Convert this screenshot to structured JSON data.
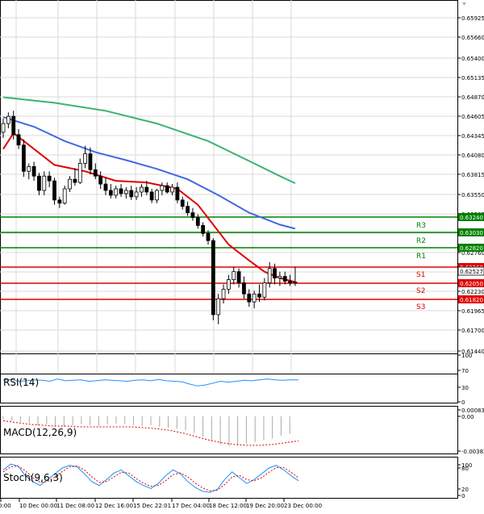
{
  "chart_data": {
    "type": "candlestick",
    "y_ticks": [
      "0.65925",
      "0.65660",
      "0.65400",
      "0.65135",
      "0.64870",
      "0.64605",
      "0.64345",
      "0.64080",
      "0.63815",
      "0.63550",
      "0.63285",
      "0.63020",
      "0.62760",
      "0.62495",
      "0.62230",
      "0.61965",
      "0.61700",
      "0.61440"
    ],
    "ylim": [
      0.6144,
      0.6618
    ],
    "x_ticks": [
      "0:00",
      "10 Dec 00:00",
      "11 Dec 08:00",
      "12 Dec 16:00",
      "15 Dec 22:01",
      "17 Dec 04:00",
      "18 Dec 12:00",
      "19 Dec 20:00",
      "23 Dec 00:00"
    ],
    "current_price": "0.62527",
    "levels": [
      {
        "name": "R3",
        "value": 0.6324,
        "label": "0.63240",
        "color": "#008000"
      },
      {
        "name": "R2",
        "value": 0.6303,
        "label": "0.63030",
        "color": "#008000"
      },
      {
        "name": "R1",
        "value": 0.6282,
        "label": "0.62820",
        "color": "#008000"
      },
      {
        "name": "S1",
        "value": 0.6226,
        "label": "0.62260",
        "color": "#e00000"
      },
      {
        "name": "S2",
        "value": 0.6205,
        "label": "0.62050",
        "color": "#e00000"
      },
      {
        "name": "S3",
        "value": 0.6182,
        "label": "0.61820",
        "color": "#e00000"
      }
    ],
    "candles": [
      [
        0.6441,
        0.6458,
        0.6434,
        0.6452
      ],
      [
        0.6452,
        0.6466,
        0.6446,
        0.6461
      ],
      [
        0.6461,
        0.6468,
        0.6432,
        0.6438
      ],
      [
        0.6438,
        0.6445,
        0.642,
        0.6425
      ],
      [
        0.6425,
        0.6432,
        0.6385,
        0.6392
      ],
      [
        0.6392,
        0.6402,
        0.6382,
        0.6398
      ],
      [
        0.6398,
        0.6404,
        0.638,
        0.6386
      ],
      [
        0.6386,
        0.639,
        0.6362,
        0.6368
      ],
      [
        0.6368,
        0.6392,
        0.6362,
        0.6386
      ],
      [
        0.6386,
        0.6392,
        0.6372,
        0.638
      ],
      [
        0.638,
        0.6384,
        0.635,
        0.6356
      ],
      [
        0.6356,
        0.636,
        0.6346,
        0.6352
      ],
      [
        0.6352,
        0.6374,
        0.635,
        0.637
      ],
      [
        0.637,
        0.6386,
        0.6366,
        0.6382
      ],
      [
        0.6382,
        0.6396,
        0.6374,
        0.6378
      ],
      [
        0.6378,
        0.6408,
        0.6376,
        0.6402
      ],
      [
        0.6402,
        0.6424,
        0.6396,
        0.6414
      ],
      [
        0.6414,
        0.6422,
        0.6388,
        0.6394
      ],
      [
        0.6394,
        0.6402,
        0.6382,
        0.6386
      ],
      [
        0.6386,
        0.6392,
        0.637,
        0.6376
      ],
      [
        0.6376,
        0.6384,
        0.6362,
        0.6368
      ],
      [
        0.6368,
        0.6376,
        0.6358,
        0.6362
      ],
      [
        0.6362,
        0.6374,
        0.6358,
        0.637
      ],
      [
        0.637,
        0.6376,
        0.636,
        0.6364
      ],
      [
        0.6364,
        0.6372,
        0.6358,
        0.6368
      ],
      [
        0.6368,
        0.6374,
        0.6356,
        0.636
      ],
      [
        0.636,
        0.6372,
        0.6356,
        0.6366
      ],
      [
        0.6366,
        0.6376,
        0.636,
        0.6372
      ],
      [
        0.6372,
        0.638,
        0.6362,
        0.6366
      ],
      [
        0.6366,
        0.637,
        0.6352,
        0.6356
      ],
      [
        0.6356,
        0.637,
        0.6352,
        0.6368
      ],
      [
        0.6368,
        0.6378,
        0.6362,
        0.6374
      ],
      [
        0.6374,
        0.6378,
        0.6364,
        0.6366
      ],
      [
        0.6366,
        0.6376,
        0.6362,
        0.6372
      ],
      [
        0.6372,
        0.6378,
        0.6352,
        0.6356
      ],
      [
        0.6356,
        0.636,
        0.6344,
        0.6348
      ],
      [
        0.6348,
        0.6354,
        0.6336,
        0.634
      ],
      [
        0.634,
        0.6346,
        0.633,
        0.6334
      ],
      [
        0.6334,
        0.6338,
        0.632,
        0.6324
      ],
      [
        0.6324,
        0.6328,
        0.631,
        0.6314
      ],
      [
        0.6314,
        0.6318,
        0.63,
        0.6305
      ],
      [
        0.6305,
        0.6308,
        0.6205,
        0.6212
      ],
      [
        0.6212,
        0.6238,
        0.62,
        0.6232
      ],
      [
        0.6232,
        0.625,
        0.6226,
        0.6244
      ],
      [
        0.6244,
        0.6262,
        0.6238,
        0.6256
      ],
      [
        0.6256,
        0.6272,
        0.625,
        0.6266
      ],
      [
        0.6266,
        0.627,
        0.6246,
        0.6252
      ],
      [
        0.6252,
        0.626,
        0.6232,
        0.6238
      ],
      [
        0.6238,
        0.6244,
        0.6222,
        0.6228
      ],
      [
        0.6228,
        0.6242,
        0.622,
        0.6238
      ],
      [
        0.6238,
        0.625,
        0.6228,
        0.6234
      ],
      [
        0.6234,
        0.6258,
        0.623,
        0.6252
      ],
      [
        0.6252,
        0.6278,
        0.6246,
        0.627
      ],
      [
        0.627,
        0.6276,
        0.625,
        0.6258
      ],
      [
        0.6258,
        0.6266,
        0.6248,
        0.626
      ],
      [
        0.626,
        0.6266,
        0.625,
        0.6254
      ],
      [
        0.6254,
        0.6262,
        0.6248,
        0.6252
      ],
      [
        0.6252,
        0.6272,
        0.6248,
        0.6253
      ]
    ],
    "moving_averages": [
      {
        "name": "MA fast",
        "color": "#e00000",
        "points": [
          [
            0,
            0.642
          ],
          [
            2,
            0.644
          ],
          [
            5,
            0.6425
          ],
          [
            10,
            0.64
          ],
          [
            16,
            0.6392
          ],
          [
            22,
            0.638
          ],
          [
            28,
            0.6378
          ],
          [
            34,
            0.637
          ],
          [
            38,
            0.635
          ],
          [
            41,
            0.6325
          ],
          [
            44,
            0.63
          ],
          [
            48,
            0.628
          ],
          [
            51,
            0.6266
          ],
          [
            54,
            0.6258
          ],
          [
            57,
            0.6253
          ]
        ]
      },
      {
        "name": "MA mid",
        "color": "#4169e1",
        "points": [
          [
            0,
            0.646
          ],
          [
            6,
            0.6448
          ],
          [
            12,
            0.643
          ],
          [
            18,
            0.6416
          ],
          [
            24,
            0.6406
          ],
          [
            30,
            0.6395
          ],
          [
            36,
            0.6382
          ],
          [
            42,
            0.6362
          ],
          [
            48,
            0.634
          ],
          [
            54,
            0.6325
          ],
          [
            57,
            0.632
          ]
        ]
      },
      {
        "name": "MA slow",
        "color": "#3cb371",
        "points": [
          [
            0,
            0.6485
          ],
          [
            10,
            0.6478
          ],
          [
            20,
            0.6468
          ],
          [
            30,
            0.6452
          ],
          [
            40,
            0.643
          ],
          [
            48,
            0.6405
          ],
          [
            54,
            0.6386
          ],
          [
            57,
            0.6377
          ]
        ]
      }
    ],
    "subpanels": [
      {
        "name": "RSI(14)",
        "ticks": [
          "100",
          "70",
          "30",
          "0"
        ],
        "series": [
          {
            "color": "#1e90ff",
            "values": [
              46,
              48,
              44,
              45,
              47,
              46,
              44,
              49,
              45,
              46,
              47,
              44,
              45,
              47,
              46,
              45,
              44,
              46,
              47,
              45,
              48,
              45,
              44,
              43,
              38,
              34,
              36,
              40,
              44,
              42,
              44,
              46,
              45,
              47,
              49,
              47,
              46,
              47,
              47
            ]
          }
        ]
      },
      {
        "name": "MACD(12,26,9)",
        "ticks": [
          "0.000833",
          "0.00",
          "-0.003827"
        ],
        "histogram": [
          -0.0003,
          -0.0005,
          -0.0006,
          -0.0008,
          -0.001,
          -0.0009,
          -0.0011,
          -0.0012,
          -0.001,
          -0.0009,
          -0.001,
          -0.0011,
          -0.0009,
          -0.0008,
          -0.0009,
          -0.001,
          -0.0011,
          -0.001,
          -0.0012,
          -0.0013,
          -0.0014,
          -0.0016,
          -0.0019,
          -0.0023,
          -0.0028,
          -0.0032,
          -0.0034,
          -0.0033,
          -0.0031,
          -0.0029,
          -0.0027,
          -0.0025,
          -0.0022,
          -0.002
        ],
        "signal": [
          -0.0005,
          -0.0007,
          -0.0009,
          -0.001,
          -0.0011,
          -0.0011,
          -0.0012,
          -0.0012,
          -0.0012,
          -0.0012,
          -0.0012,
          -0.0013,
          -0.0014,
          -0.0016,
          -0.0019,
          -0.0023,
          -0.0027,
          -0.003,
          -0.0032,
          -0.0033,
          -0.0033,
          -0.0032,
          -0.003,
          -0.0028
        ]
      },
      {
        "name": "Stoch(9,6,3)",
        "ticks": [
          "100",
          "80",
          "20",
          "0"
        ],
        "series": [
          {
            "color": "#1e90ff",
            "values": [
              70,
              85,
              80,
              55,
              40,
              30,
              45,
              60,
              75,
              82,
              78,
              60,
              40,
              30,
              45,
              62,
              70,
              55,
              40,
              30,
              22,
              35,
              55,
              70,
              60,
              40,
              25,
              15,
              12,
              20,
              45,
              65,
              50,
              35,
              45,
              60,
              75,
              82,
              70,
              55,
              42
            ]
          },
          {
            "color": "#e00000",
            "dash": true,
            "values": [
              65,
              78,
              80,
              68,
              50,
              38,
              40,
              52,
              66,
              78,
              80,
              70,
              52,
              38,
              40,
              52,
              64,
              62,
              48,
              36,
              28,
              30,
              42,
              58,
              62,
              52,
              36,
              24,
              16,
              18,
              32,
              52,
              56,
              45,
              42,
              50,
              64,
              76,
              76,
              64,
              50
            ]
          }
        ]
      }
    ]
  }
}
